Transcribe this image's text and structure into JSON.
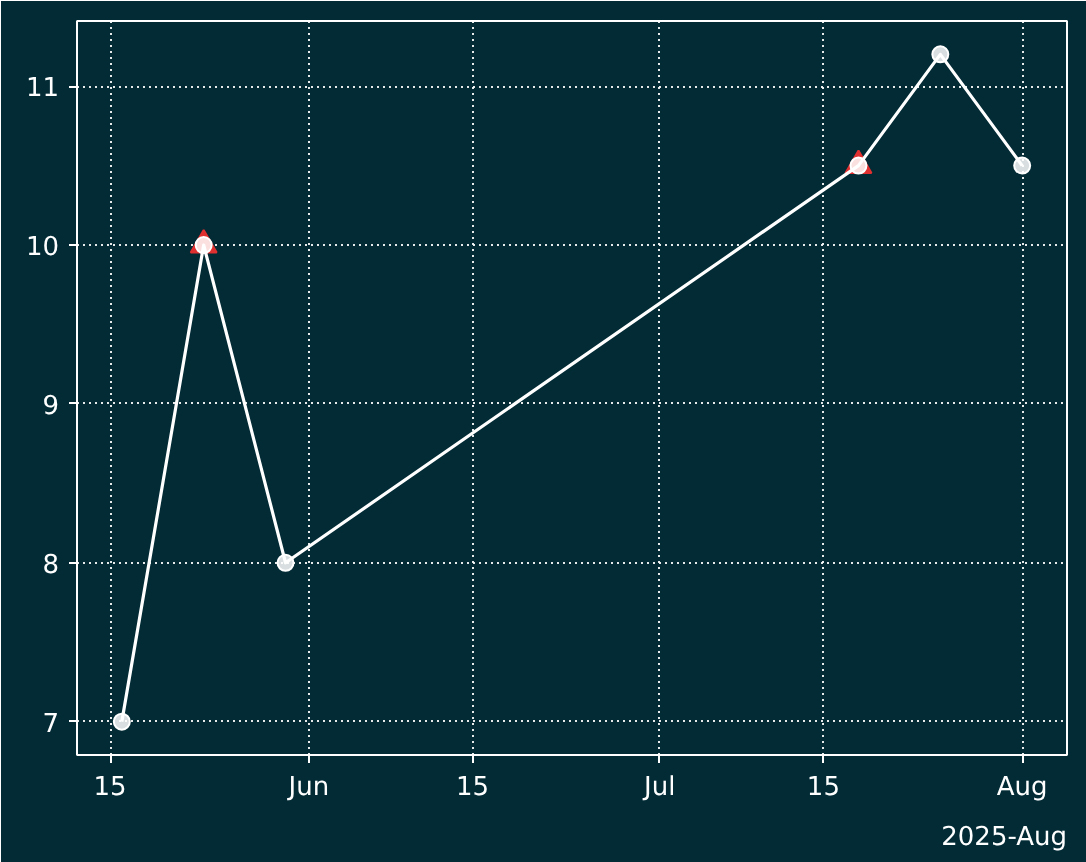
{
  "chart_data": {
    "type": "line",
    "x": [
      "2025-05-16",
      "2025-05-23",
      "2025-05-30",
      "2025-07-18",
      "2025-07-25",
      "2025-08-01"
    ],
    "series": [
      {
        "type": "scatter",
        "x": [
          "2025-05-23",
          "2025-07-18"
        ],
        "values": [
          10,
          10.5
        ],
        "color": "#e03030",
        "marker": "triangle"
      },
      {
        "color": "#ffffff",
        "values": [
          7,
          10,
          8,
          10.5,
          11.2,
          10.5
        ],
        "marker": "circle",
        "line_style": "solid"
      }
    ],
    "xlim": [
      "2025-05-12T04:00",
      "2025-08-04T20:00"
    ],
    "xticks": [
      {
        "value": "2025-05-15",
        "label": "15"
      },
      {
        "value": "2025-06-01",
        "label": "Jun"
      },
      {
        "value": "2025-06-15",
        "label": "15"
      },
      {
        "value": "2025-07-01",
        "label": "Jul"
      },
      {
        "value": "2025-07-15",
        "label": "15"
      },
      {
        "value": "2025-08-01",
        "label": "Aug"
      }
    ],
    "ylim": [
      6.79,
      11.41
    ],
    "yticks": [
      7,
      8,
      9,
      10,
      11
    ],
    "grid": true,
    "annotations": [
      "2025-Aug"
    ]
  }
}
